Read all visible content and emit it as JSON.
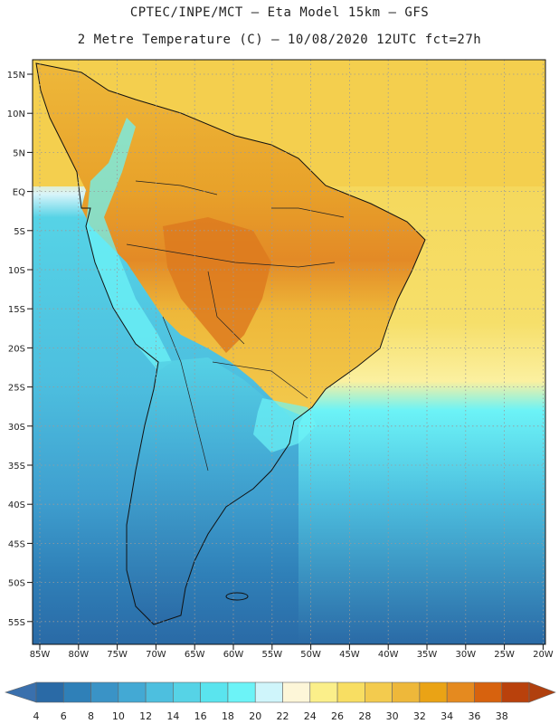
{
  "header": {
    "title_line1": "CPTEC/INPE/MCT –  Eta Model 15km – GFS",
    "title_line2": "2 Metre Temperature (C) – 10/08/2020 12UTC fct=27h"
  },
  "map": {
    "lat_labels": [
      "15N",
      "10N",
      "5N",
      "EQ",
      "5S",
      "10S",
      "15S",
      "20S",
      "25S",
      "30S",
      "35S",
      "40S",
      "45S",
      "50S",
      "55S"
    ],
    "lon_labels": [
      "85W",
      "80W",
      "75W",
      "70W",
      "65W",
      "60W",
      "55W",
      "50W",
      "45W",
      "40W",
      "35W",
      "30W",
      "25W",
      "20W"
    ],
    "ocean_color": "#5bcbe0",
    "land_warm_color": "#f2c64a"
  },
  "colorbar": {
    "labels": [
      "4",
      "6",
      "8",
      "10",
      "12",
      "14",
      "16",
      "18",
      "20",
      "22",
      "24",
      "26",
      "28",
      "30",
      "32",
      "34",
      "36",
      "38"
    ],
    "colors": [
      "#2a6aa6",
      "#2f80b8",
      "#3a93c6",
      "#43a9d4",
      "#4dbfdf",
      "#56d3e6",
      "#5ae4ee",
      "#6cf3f7",
      "#cff5fb",
      "#fdf6d8",
      "#fbef8a",
      "#f8de62",
      "#f3cb4e",
      "#eeb83a",
      "#eaa315",
      "#e58a1f",
      "#d7620e",
      "#b9410c"
    ],
    "low_arrow_color": "#3a70ad",
    "high_arrow_color": "#b0400e"
  }
}
